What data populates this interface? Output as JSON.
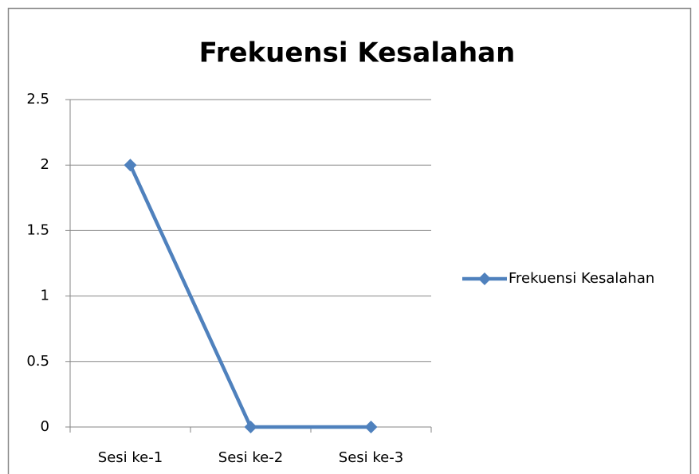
{
  "chart_data": {
    "type": "line",
    "title": "Frekuensi Kesalahan",
    "categories": [
      "Sesi ke-1",
      "Sesi ke-2",
      "Sesi ke-3"
    ],
    "series": [
      {
        "name": "Frekuensi Kesalahan",
        "color": "#4f81bd",
        "values": [
          2,
          0,
          0
        ]
      }
    ],
    "ylim": [
      0,
      2.5
    ],
    "yticks": [
      0,
      0.5,
      1,
      1.5,
      2,
      2.5
    ],
    "grid": true,
    "legend": "right"
  }
}
